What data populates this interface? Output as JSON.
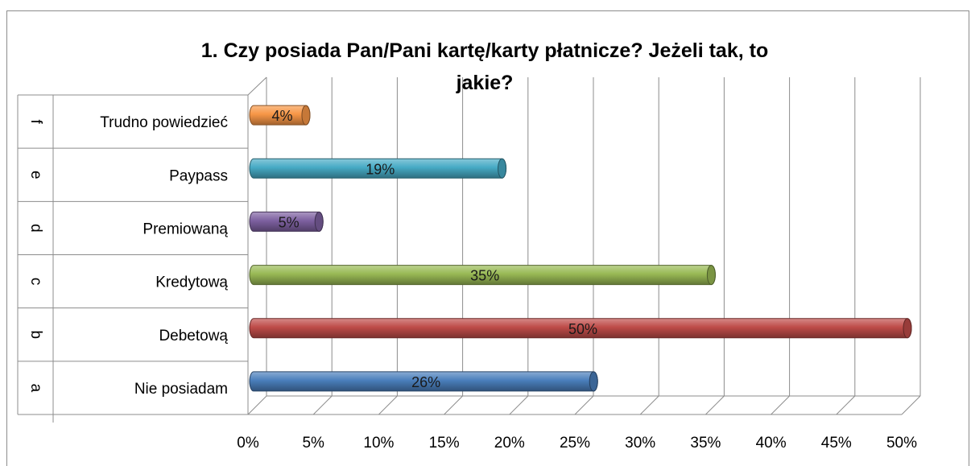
{
  "chart_data": {
    "type": "bar",
    "orientation": "horizontal",
    "title": "1. Czy posiada Pan/Pani kartę/karty płatnicze? Jeżeli tak, to jakie?",
    "title_lines": [
      "1. Czy posiada Pan/Pani kartę/karty płatnicze? Jeżeli tak, to",
      "jakie?"
    ],
    "categories": [
      {
        "letter": "a",
        "label": "Nie posiadam"
      },
      {
        "letter": "b",
        "label": "Debetową"
      },
      {
        "letter": "c",
        "label": "Kredytową"
      },
      {
        "letter": "d",
        "label": "Premiowaną"
      },
      {
        "letter": "e",
        "label": "Paypass"
      },
      {
        "letter": "f",
        "label": "Trudno powiedzieć"
      }
    ],
    "values": [
      26,
      50,
      35,
      5,
      19,
      4
    ],
    "data_labels": [
      "26%",
      "50%",
      "35%",
      "5%",
      "19%",
      "4%"
    ],
    "colors": [
      "#4a7ebb",
      "#be4b48",
      "#98b954",
      "#7d60a0",
      "#46aac5",
      "#f79646"
    ],
    "xlim": [
      0,
      50
    ],
    "x_ticks": [
      "0%",
      "5%",
      "10%",
      "15%",
      "20%",
      "25%",
      "30%",
      "35%",
      "40%",
      "45%",
      "50%"
    ],
    "grid": true,
    "legend": "none"
  }
}
